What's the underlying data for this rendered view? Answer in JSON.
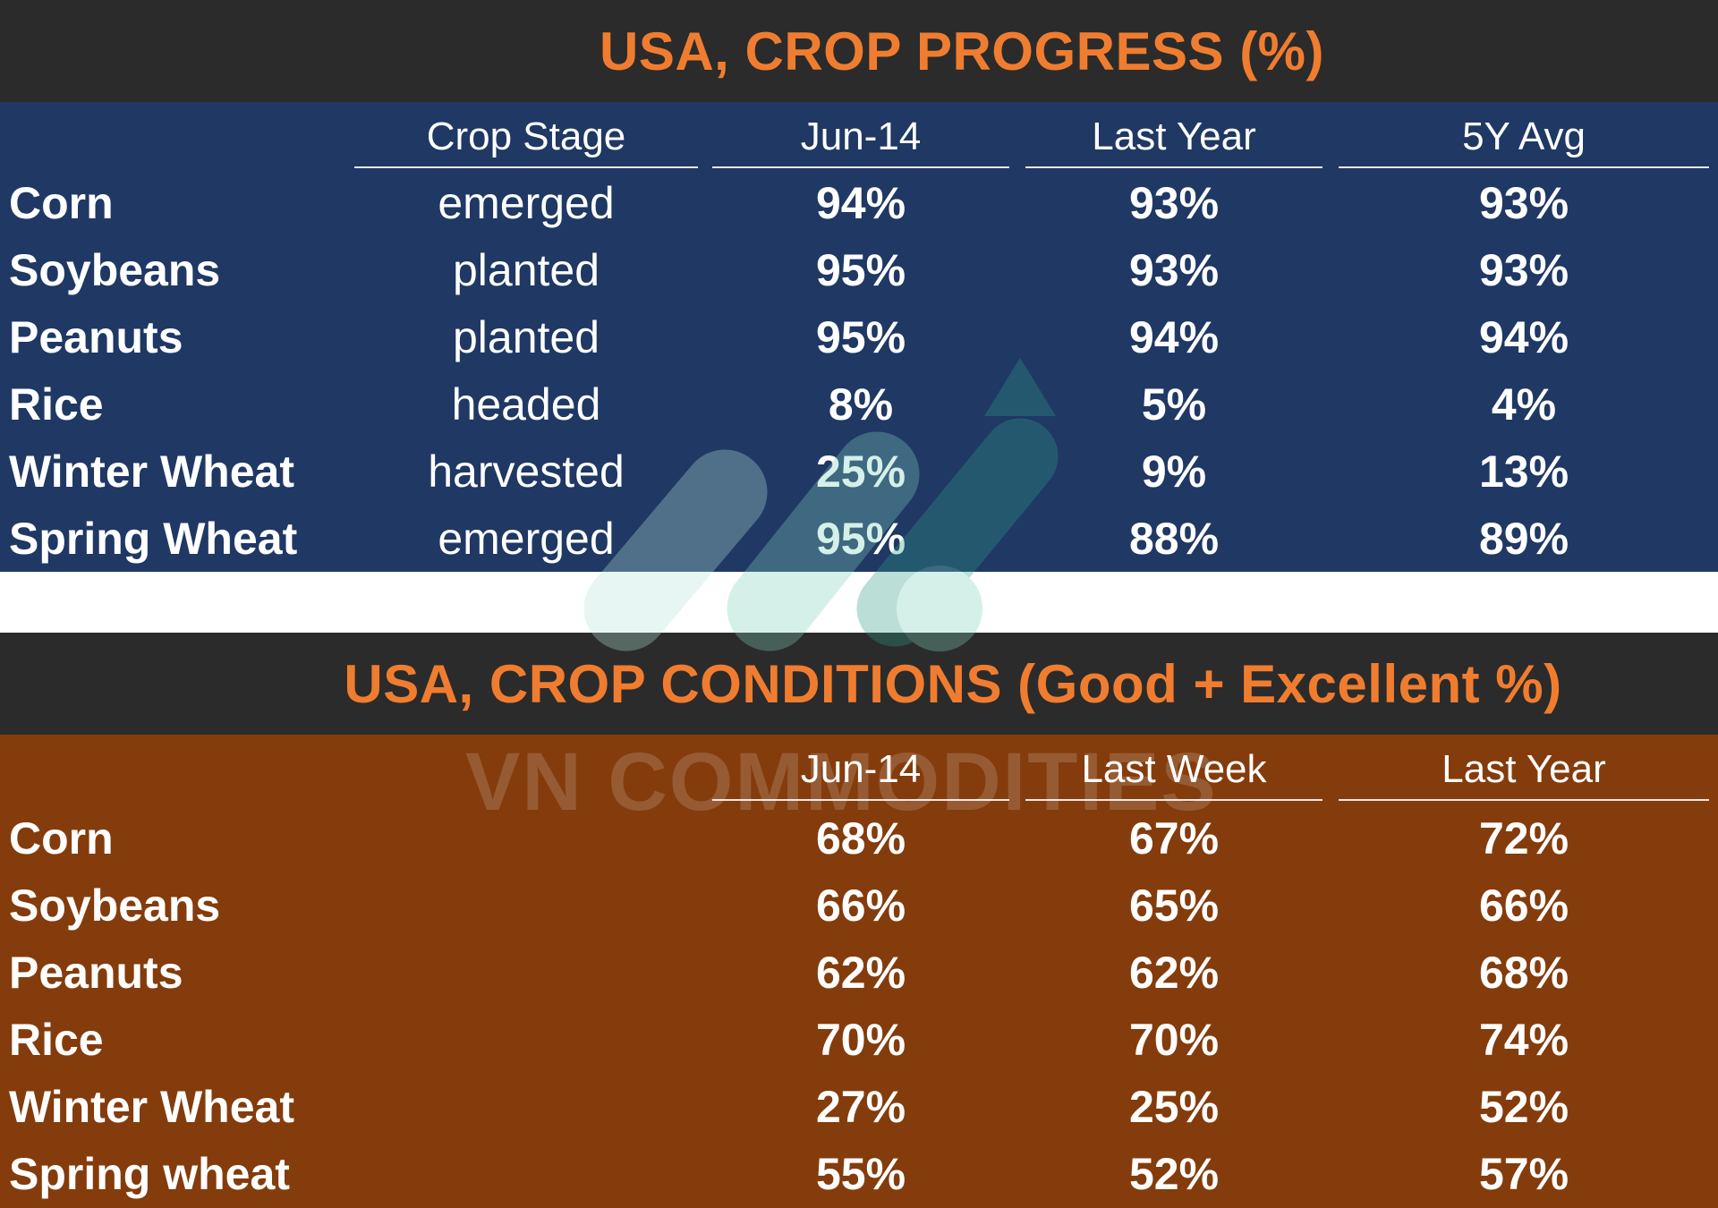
{
  "progress": {
    "title": "USA, CROP PROGRESS (%)",
    "columns": [
      "Crop Stage",
      "Jun-14",
      "Last Year",
      "5Y Avg"
    ],
    "rows": [
      {
        "crop": "Corn",
        "stage": "emerged",
        "current": "94%",
        "last_year": "93%",
        "avg5": "93%"
      },
      {
        "crop": "Soybeans",
        "stage": "planted",
        "current": "95%",
        "last_year": "93%",
        "avg5": "93%"
      },
      {
        "crop": "Peanuts",
        "stage": "planted",
        "current": "95%",
        "last_year": "94%",
        "avg5": "94%"
      },
      {
        "crop": "Rice",
        "stage": "headed",
        "current": "8%",
        "last_year": "5%",
        "avg5": "4%"
      },
      {
        "crop": "Winter Wheat",
        "stage": "harvested",
        "current": "25%",
        "last_year": "9%",
        "avg5": "13%"
      },
      {
        "crop": "Spring Wheat",
        "stage": "emerged",
        "current": "95%",
        "last_year": "88%",
        "avg5": "89%"
      }
    ]
  },
  "conditions": {
    "title": "USA, CROP CONDITIONS (Good + Excellent %)",
    "columns": [
      "Jun-14",
      "Last Week",
      "Last Year"
    ],
    "rows": [
      {
        "crop": "Corn",
        "current": "68%",
        "last_week": "67%",
        "last_year": "72%"
      },
      {
        "crop": "Soybeans",
        "current": "66%",
        "last_week": "65%",
        "last_year": "66%"
      },
      {
        "crop": "Peanuts",
        "current": "62%",
        "last_week": "62%",
        "last_year": "68%"
      },
      {
        "crop": "Rice",
        "current": "70%",
        "last_week": "70%",
        "last_year": "74%"
      },
      {
        "crop": "Winter Wheat",
        "current": "27%",
        "last_week": "25%",
        "last_year": "52%"
      },
      {
        "crop": "Spring wheat",
        "current": "55%",
        "last_week": "52%",
        "last_year": "57%"
      }
    ]
  },
  "watermark": {
    "text": "VN COMMODITIES"
  },
  "colors": {
    "title_bar": "#2b2b2b",
    "title_text": "#f07d2f",
    "progress_body": "#1f3864",
    "conditions_body": "#843c0c",
    "text": "#ffffff"
  },
  "chart_data": [
    {
      "type": "table",
      "title": "USA, CROP PROGRESS (%)",
      "columns": [
        "Crop Stage",
        "Jun-14",
        "Last Year",
        "5Y Avg"
      ],
      "rows": [
        [
          "Corn",
          "emerged",
          94,
          93,
          93
        ],
        [
          "Soybeans",
          "planted",
          95,
          93,
          93
        ],
        [
          "Peanuts",
          "planted",
          95,
          94,
          94
        ],
        [
          "Rice",
          "headed",
          8,
          5,
          4
        ],
        [
          "Winter Wheat",
          "harvested",
          25,
          9,
          13
        ],
        [
          "Spring Wheat",
          "emerged",
          95,
          88,
          89
        ]
      ]
    },
    {
      "type": "table",
      "title": "USA, CROP CONDITIONS (Good + Excellent %)",
      "columns": [
        "Jun-14",
        "Last Week",
        "Last Year"
      ],
      "rows": [
        [
          "Corn",
          68,
          67,
          72
        ],
        [
          "Soybeans",
          66,
          65,
          66
        ],
        [
          "Peanuts",
          62,
          62,
          68
        ],
        [
          "Rice",
          70,
          70,
          74
        ],
        [
          "Winter Wheat",
          27,
          25,
          52
        ],
        [
          "Spring wheat",
          55,
          52,
          57
        ]
      ]
    }
  ]
}
